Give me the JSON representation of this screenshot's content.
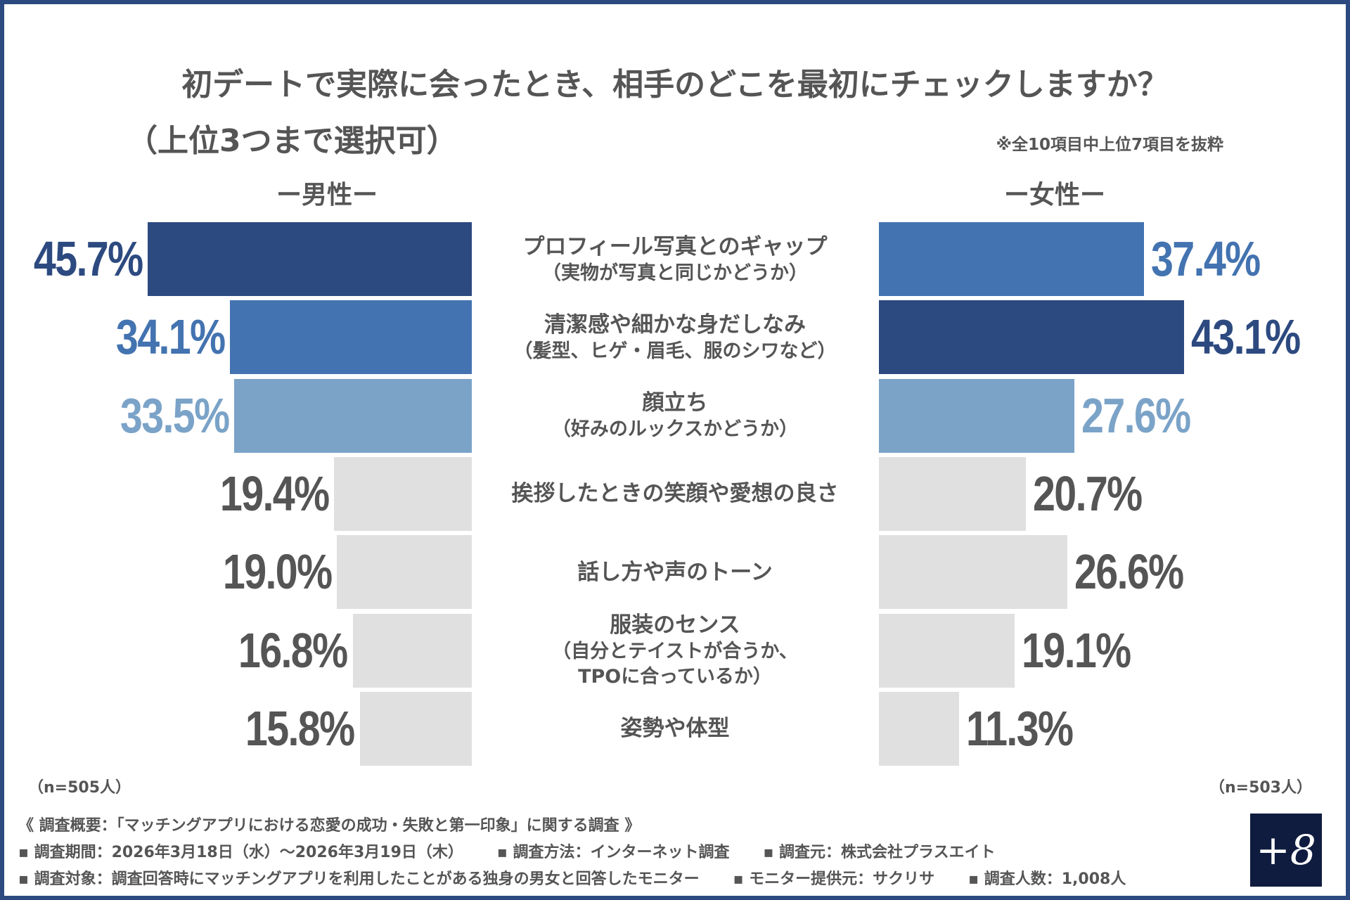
{
  "chart_data": {
    "type": "bar",
    "orientation": "horizontal-butterfly",
    "title": "初デートで実際に会ったとき、相手のどこを最初にチェックしますか？",
    "subtitle": "（上位3つまで選択可）",
    "note": "※全10項目中上位7項目を抜粋",
    "unit": "%",
    "xlim": [
      0,
      50
    ],
    "categories": [
      [
        "プロフィール写真とのギャップ",
        "（実物が写真と同じかどうか）"
      ],
      [
        "清潔感や細かな身だしなみ",
        "（髪型、ヒゲ・眉毛、服のシワなど）"
      ],
      [
        "顔立ち",
        "（好みのルックスかどうか）"
      ],
      [
        "挨拶したときの笑顔や愛想の良さ"
      ],
      [
        "話し方や声のトーン"
      ],
      [
        "服装のセンス",
        "（自分とテイストが合うか、",
        "TPOに合っているか）"
      ],
      [
        "姿勢や体型"
      ]
    ],
    "series": [
      {
        "name": "ー男性ー",
        "n": "（n=505人）",
        "values": [
          45.7,
          34.1,
          33.5,
          19.4,
          19.0,
          16.8,
          15.8
        ],
        "labels": [
          "45.7%",
          "34.1%",
          "33.5%",
          "19.4%",
          "19.0%",
          "16.8%",
          "15.8%"
        ],
        "rank_colors": [
          "dark",
          "mid",
          "light",
          "grey",
          "grey",
          "grey",
          "grey"
        ]
      },
      {
        "name": "ー女性ー",
        "n": "（n=503人）",
        "values": [
          37.4,
          43.1,
          27.6,
          20.7,
          26.6,
          19.1,
          11.3
        ],
        "labels": [
          "37.4%",
          "43.1%",
          "27.6%",
          "20.7%",
          "26.6%",
          "19.1%",
          "11.3%"
        ],
        "rank_colors": [
          "mid",
          "dark",
          "light",
          "grey",
          "grey",
          "grey",
          "grey"
        ]
      }
    ]
  },
  "colors": {
    "dark": "#2d4a80",
    "mid": "#4373b0",
    "light": "#7ba3c8",
    "grey": "#e0e0e0",
    "grey_text": "#555555",
    "frame": "#2d4a80",
    "logo_bg": "#0f1c3f"
  },
  "footer": {
    "overview": "《 調査概要：「マッチングアプリにおける恋愛の成功・失敗と第一印象」に関する調査 》",
    "line2": [
      "▪ 調査期間：2026年3月18日（水）～2026年3月19日（木）",
      "▪ 調査方法：インターネット調査",
      "▪ 調査元：株式会社プラスエイト"
    ],
    "line3": [
      "▪ 調査対象：調査回答時にマッチングアプリを利用したことがある独身の男女と回答したモニター",
      "▪ モニター提供元：サクリサ",
      "▪ 調査人数：1,008人"
    ]
  },
  "logo": "+8"
}
